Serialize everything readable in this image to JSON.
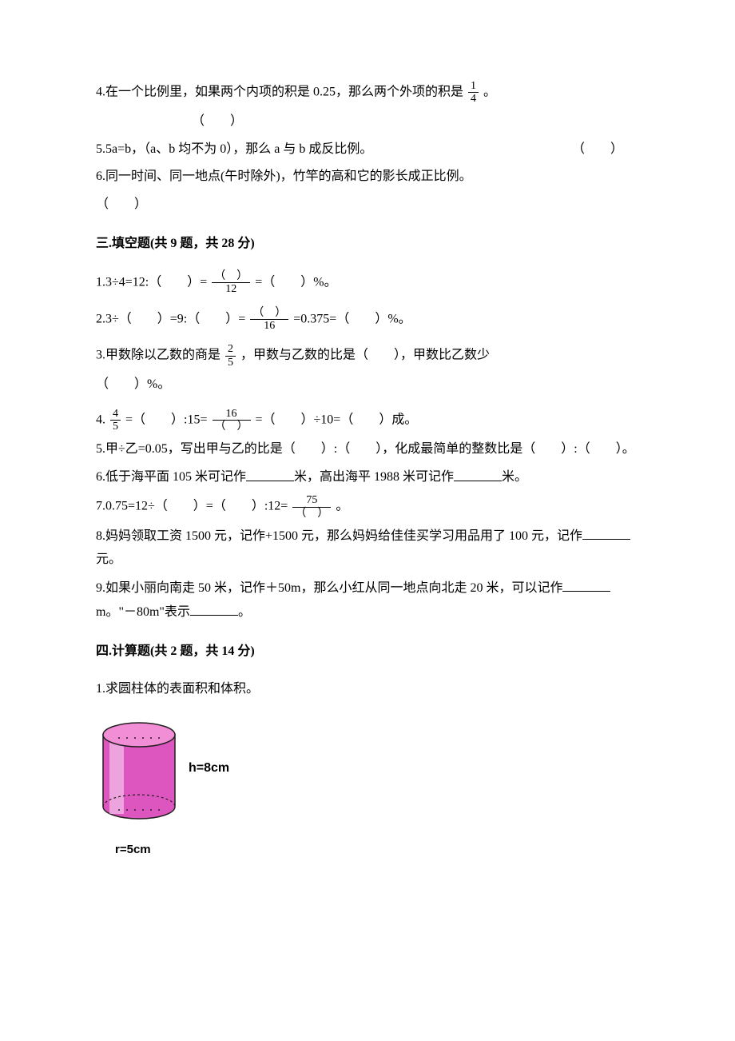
{
  "section2": {
    "q4": {
      "text_a": "4.在一个比例里，如果两个内项的积是 0.25，那么两个外项的积是",
      "frac_num": "1",
      "frac_den": "4",
      "tail": "。",
      "mark": "（　　）"
    },
    "q5": {
      "text": "5.5a=b，（a、b 均不为 0），那么 a 与 b 成反比例。",
      "mark": "（　　）"
    },
    "q6": {
      "text": "6.同一时间、同一地点(午时除外)，竹竿的高和它的影长成正比例。",
      "mark": "（　　）"
    }
  },
  "section3": {
    "title": "三.填空题(共 9 题，共 28 分)",
    "q1": {
      "pre": "1.3÷4=12:（　　）=",
      "frac_num": "（　）",
      "frac_den": "12",
      "post": "=（　　）%。"
    },
    "q2": {
      "pre": "2.3÷（　　）=9:（　　）=",
      "frac_num": "（　）",
      "frac_den": "16",
      "post": "=0.375=（　　）%。"
    },
    "q3": {
      "pre": "3.甲数除以乙数的商是",
      "frac_num": "2",
      "frac_den": "5",
      "mid": "，甲数与乙数的比是（　　），甲数比乙数少",
      "tail": "（　　）%。"
    },
    "q4": {
      "pre": "4.",
      "f1_num": "4",
      "f1_den": "5",
      "mid1": "=（　　）:15=",
      "f2_num": "16",
      "f2_den": "（　）",
      "mid2": "=（　　）÷10=（　　）成。"
    },
    "q5": "5.甲÷乙=0.05，写出甲与乙的比是（　　）:（　　），化成最简单的整数比是（　　）:（　　）。",
    "q6_a": "6.低于海平面 105 米可记作",
    "q6_b": "米，高出海平 1988 米可记作",
    "q6_c": "米。",
    "q7": {
      "pre": "7.0.75=12÷（　　）=（　　）:12=",
      "frac_num": "75",
      "frac_den": "（　）",
      "post": "。"
    },
    "q8_a": "8.妈妈领取工资 1500 元，记作+1500 元，那么妈妈给佳佳买学习用品用了 100 元，记作",
    "q8_b": "元。",
    "q9_a": "9.如果小丽向南走 50 米，记作＋50m，那么小红从同一地点向北走 20 米，可以记作",
    "q9_b": "m。\"－80m\"表示",
    "q9_c": "。"
  },
  "section4": {
    "title": "四.计算题(共 2 题，共 14 分)",
    "q1": "1.求圆柱体的表面积和体积。",
    "h_label": "h=8cm",
    "r_label": "r=5cm",
    "cylinder": {
      "top_fill": "#f18ed6",
      "body_fill": "#dd56c0",
      "body_highlight": "#f9e6f5",
      "stroke": "#231f1f",
      "width": 90,
      "height": 120,
      "ellipse_ry": 15
    }
  }
}
